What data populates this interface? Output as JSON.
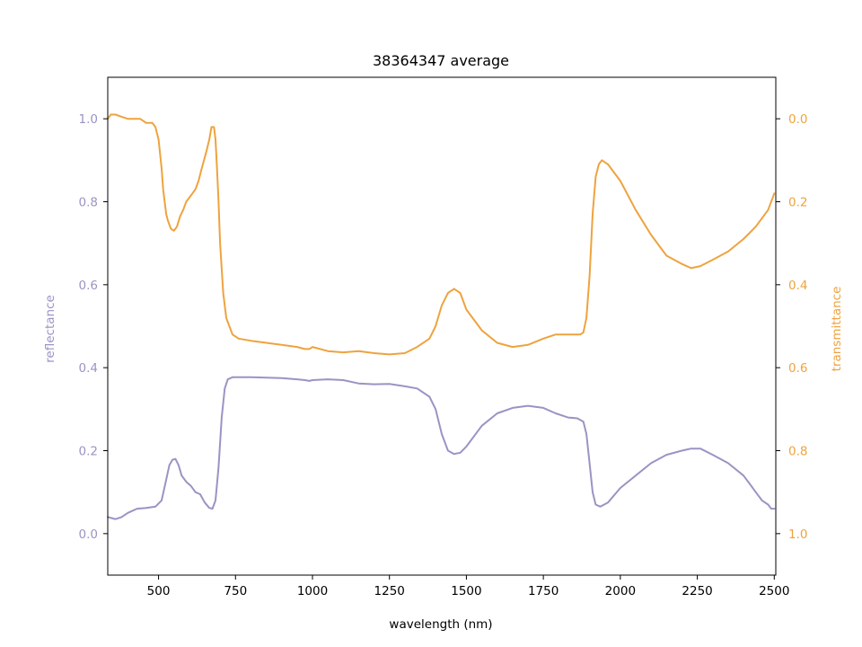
{
  "chart_data": {
    "type": "line",
    "title": "38364347 average",
    "xlabel": "wavelength (nm)",
    "ylabel_left": "reflectance",
    "ylabel_right": "transmittance",
    "xlim": [
      335,
      2505
    ],
    "ylim_left": [
      -0.1,
      1.1
    ],
    "ylim_right": [
      1.1,
      -0.1
    ],
    "right_axis_inverted": true,
    "grid": false,
    "xticks": [
      500,
      750,
      1000,
      1250,
      1500,
      1750,
      2000,
      2250,
      2500
    ],
    "yticks_left": [
      0.0,
      0.2,
      0.4,
      0.6,
      0.8,
      1.0
    ],
    "yticks_right": [
      0.0,
      0.2,
      0.4,
      0.6,
      0.8,
      1.0
    ],
    "colors": {
      "reflectance": "#9a94c4",
      "transmittance": "#eea33e"
    },
    "series": [
      {
        "name": "reflectance",
        "axis": "left",
        "x": [
          335,
          360,
          380,
          400,
          430,
          460,
          490,
          510,
          525,
          535,
          545,
          555,
          565,
          575,
          590,
          605,
          620,
          635,
          650,
          665,
          675,
          685,
          695,
          705,
          715,
          725,
          740,
          760,
          800,
          850,
          900,
          950,
          975,
          990,
          1000,
          1050,
          1100,
          1150,
          1200,
          1250,
          1300,
          1340,
          1380,
          1400,
          1420,
          1440,
          1460,
          1480,
          1500,
          1550,
          1600,
          1650,
          1700,
          1750,
          1790,
          1830,
          1860,
          1880,
          1890,
          1900,
          1910,
          1920,
          1935,
          1960,
          2000,
          2050,
          2100,
          2150,
          2200,
          2230,
          2260,
          2300,
          2350,
          2400,
          2420,
          2440,
          2460,
          2480,
          2490,
          2500
        ],
        "y": [
          0.04,
          0.035,
          0.04,
          0.05,
          0.06,
          0.062,
          0.065,
          0.08,
          0.13,
          0.165,
          0.178,
          0.18,
          0.165,
          0.14,
          0.125,
          0.115,
          0.1,
          0.095,
          0.075,
          0.062,
          0.06,
          0.08,
          0.16,
          0.28,
          0.35,
          0.372,
          0.377,
          0.377,
          0.377,
          0.376,
          0.375,
          0.372,
          0.37,
          0.368,
          0.37,
          0.372,
          0.37,
          0.362,
          0.36,
          0.361,
          0.355,
          0.35,
          0.33,
          0.3,
          0.24,
          0.2,
          0.192,
          0.195,
          0.21,
          0.26,
          0.29,
          0.303,
          0.308,
          0.303,
          0.29,
          0.28,
          0.278,
          0.27,
          0.24,
          0.17,
          0.1,
          0.07,
          0.065,
          0.075,
          0.11,
          0.14,
          0.17,
          0.19,
          0.2,
          0.205,
          0.205,
          0.19,
          0.17,
          0.14,
          0.12,
          0.1,
          0.08,
          0.07,
          0.06,
          0.06
        ]
      },
      {
        "name": "transmittance",
        "axis": "right",
        "x": [
          335,
          345,
          360,
          380,
          400,
          420,
          440,
          460,
          480,
          490,
          500,
          510,
          515,
          520,
          525,
          530,
          540,
          550,
          560,
          570,
          580,
          590,
          600,
          610,
          620,
          630,
          640,
          655,
          665,
          672,
          680,
          685,
          690,
          695,
          700,
          710,
          720,
          740,
          760,
          800,
          850,
          900,
          950,
          975,
          990,
          1000,
          1050,
          1100,
          1150,
          1200,
          1250,
          1300,
          1340,
          1380,
          1400,
          1420,
          1440,
          1460,
          1480,
          1500,
          1550,
          1600,
          1650,
          1700,
          1750,
          1790,
          1830,
          1860,
          1870,
          1880,
          1890,
          1900,
          1910,
          1920,
          1930,
          1940,
          1960,
          2000,
          2050,
          2100,
          2150,
          2200,
          2230,
          2260,
          2300,
          2350,
          2400,
          2440,
          2480,
          2500
        ],
        "y": [
          0.0,
          -0.01,
          -0.01,
          -0.005,
          0.0,
          0.0,
          0.0,
          0.01,
          0.01,
          0.02,
          0.05,
          0.12,
          0.17,
          0.2,
          0.23,
          0.245,
          0.265,
          0.27,
          0.26,
          0.235,
          0.22,
          0.2,
          0.19,
          0.18,
          0.17,
          0.15,
          0.12,
          0.08,
          0.05,
          0.02,
          0.02,
          0.05,
          0.12,
          0.2,
          0.3,
          0.42,
          0.48,
          0.52,
          0.53,
          0.535,
          0.54,
          0.545,
          0.55,
          0.555,
          0.555,
          0.55,
          0.56,
          0.563,
          0.56,
          0.565,
          0.568,
          0.565,
          0.55,
          0.53,
          0.5,
          0.45,
          0.42,
          0.41,
          0.42,
          0.46,
          0.51,
          0.54,
          0.55,
          0.545,
          0.53,
          0.52,
          0.52,
          0.52,
          0.52,
          0.515,
          0.48,
          0.38,
          0.23,
          0.14,
          0.11,
          0.1,
          0.11,
          0.15,
          0.22,
          0.28,
          0.33,
          0.35,
          0.36,
          0.355,
          0.34,
          0.32,
          0.29,
          0.26,
          0.22,
          0.18
        ]
      }
    ]
  }
}
